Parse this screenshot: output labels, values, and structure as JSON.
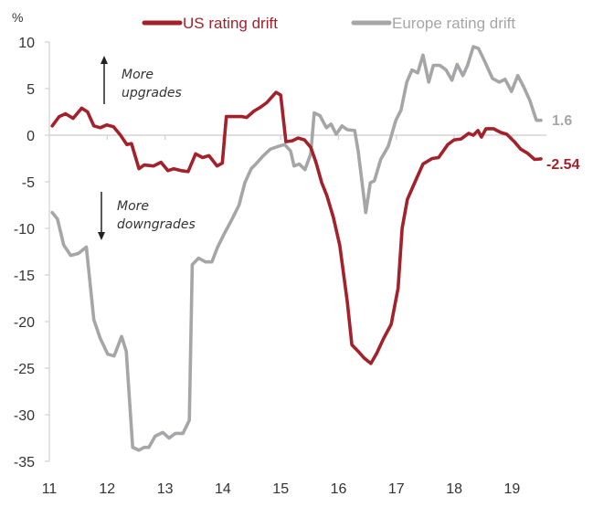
{
  "chart_data": {
    "type": "line",
    "title": "",
    "ylabel": "%",
    "xlabel": "",
    "ylim": [
      -35,
      10
    ],
    "yticks": [
      10,
      5,
      0,
      -5,
      -10,
      -15,
      -20,
      -25,
      -30,
      -35
    ],
    "xlim": [
      2011,
      2019.6
    ],
    "xticks": [
      {
        "value": 2011,
        "label": "11"
      },
      {
        "value": 2012,
        "label": "12"
      },
      {
        "value": 2013,
        "label": "13"
      },
      {
        "value": 2014,
        "label": "14"
      },
      {
        "value": 2015,
        "label": "15"
      },
      {
        "value": 2016,
        "label": "16"
      },
      {
        "value": 2017,
        "label": "17"
      },
      {
        "value": 2018,
        "label": "18"
      },
      {
        "value": 2019,
        "label": "19"
      }
    ],
    "grid": false,
    "zero_line": true,
    "legend": "top",
    "annotations": [
      {
        "text_lines": [
          "More",
          "upgrades"
        ],
        "arrow": "up"
      },
      {
        "text_lines": [
          "More",
          "downgrades"
        ],
        "arrow": "down"
      }
    ],
    "series": [
      {
        "name": "US rating drift",
        "color": "#a3212b",
        "end_label": "-2.54",
        "x": [
          2011.05,
          2011.17,
          2011.28,
          2011.41,
          2011.56,
          2011.66,
          2011.77,
          2011.88,
          2011.99,
          2012.11,
          2012.23,
          2012.34,
          2012.42,
          2012.55,
          2012.64,
          2012.8,
          2012.93,
          2013.05,
          2013.15,
          2013.28,
          2013.4,
          2013.53,
          2013.65,
          2013.76,
          2013.9,
          2013.99,
          2014.06,
          2014.17,
          2014.33,
          2014.41,
          2014.54,
          2014.65,
          2014.76,
          2014.92,
          2015.0,
          2015.09,
          2015.2,
          2015.3,
          2015.41,
          2015.52,
          2015.61,
          2015.71,
          2015.8,
          2015.91,
          2016.02,
          2016.15,
          2016.23,
          2016.34,
          2016.44,
          2016.56,
          2016.66,
          2016.78,
          2016.91,
          2017.03,
          2017.1,
          2017.19,
          2017.33,
          2017.46,
          2017.62,
          2017.73,
          2017.89,
          2018.0,
          2018.12,
          2018.25,
          2018.33,
          2018.41,
          2018.47,
          2018.55,
          2018.68,
          2018.8,
          2018.91,
          2019.04,
          2019.15,
          2019.26,
          2019.39,
          2019.5
        ],
        "y": [
          1.0,
          2.0,
          2.3,
          1.8,
          2.9,
          2.5,
          1.0,
          0.8,
          1.1,
          0.9,
          0.0,
          -1.0,
          -0.9,
          -3.6,
          -3.2,
          -3.3,
          -2.9,
          -3.8,
          -3.6,
          -3.8,
          -3.9,
          -2.0,
          -2.4,
          -2.2,
          -3.3,
          -3.0,
          2.0,
          2.0,
          2.0,
          1.9,
          2.6,
          3.0,
          3.5,
          4.6,
          4.3,
          -0.7,
          -0.6,
          -0.3,
          -0.5,
          -1.3,
          -2.9,
          -5.1,
          -6.5,
          -8.8,
          -11.8,
          -17.8,
          -22.5,
          -23.2,
          -23.9,
          -24.5,
          -23.4,
          -21.8,
          -20.3,
          -16.4,
          -10.0,
          -6.9,
          -4.9,
          -3.1,
          -2.5,
          -2.4,
          -1.0,
          -0.5,
          -0.4,
          0.2,
          0.0,
          0.5,
          -0.2,
          0.7,
          0.7,
          0.3,
          0.1,
          -0.7,
          -1.5,
          -1.9,
          -2.6,
          -2.54
        ]
      },
      {
        "name": "Europe rating drift",
        "color": "#a6a6a8",
        "end_label": "1.6",
        "x": [
          2011.05,
          2011.14,
          2011.25,
          2011.37,
          2011.5,
          2011.64,
          2011.77,
          2011.88,
          2012.01,
          2012.12,
          2012.25,
          2012.33,
          2012.44,
          2012.55,
          2012.64,
          2012.72,
          2012.83,
          2012.96,
          2013.07,
          2013.18,
          2013.31,
          2013.42,
          2013.47,
          2013.58,
          2013.7,
          2013.81,
          2013.91,
          2014.03,
          2014.16,
          2014.28,
          2014.38,
          2014.49,
          2014.57,
          2014.7,
          2014.82,
          2014.96,
          2015.07,
          2015.17,
          2015.23,
          2015.32,
          2015.42,
          2015.52,
          2015.58,
          2015.68,
          2015.79,
          2015.87,
          2015.96,
          2016.06,
          2016.15,
          2016.28,
          2016.34,
          2016.47,
          2016.55,
          2016.62,
          2016.73,
          2016.86,
          2016.99,
          2017.08,
          2017.18,
          2017.27,
          2017.37,
          2017.46,
          2017.56,
          2017.64,
          2017.75,
          2017.86,
          2017.96,
          2018.05,
          2018.15,
          2018.23,
          2018.33,
          2018.42,
          2018.53,
          2018.66,
          2018.78,
          2018.88,
          2018.99,
          2019.1,
          2019.2,
          2019.31,
          2019.42,
          2019.5
        ],
        "y": [
          -8.3,
          -9.0,
          -11.8,
          -12.9,
          -12.7,
          -12.0,
          -19.8,
          -21.8,
          -23.5,
          -23.7,
          -21.6,
          -23.2,
          -33.5,
          -33.8,
          -33.5,
          -33.5,
          -32.3,
          -31.9,
          -32.5,
          -32.0,
          -32.0,
          -30.6,
          -13.9,
          -13.2,
          -13.6,
          -13.6,
          -12.0,
          -10.5,
          -9.0,
          -7.5,
          -5.1,
          -3.6,
          -3.1,
          -2.2,
          -1.5,
          -1.2,
          -1.0,
          -1.7,
          -3.3,
          -3.1,
          -3.7,
          -2.0,
          2.4,
          2.1,
          0.8,
          1.2,
          0.1,
          1.0,
          0.6,
          0.5,
          -1.7,
          -8.3,
          -5.1,
          -4.9,
          -2.6,
          -1.2,
          1.6,
          2.7,
          5.7,
          7.0,
          6.7,
          8.6,
          5.7,
          7.5,
          7.5,
          7.0,
          5.9,
          7.6,
          6.4,
          7.5,
          9.5,
          9.3,
          7.9,
          6.1,
          5.7,
          6.0,
          4.7,
          6.4,
          5.2,
          3.7,
          1.6,
          1.6
        ]
      }
    ]
  }
}
